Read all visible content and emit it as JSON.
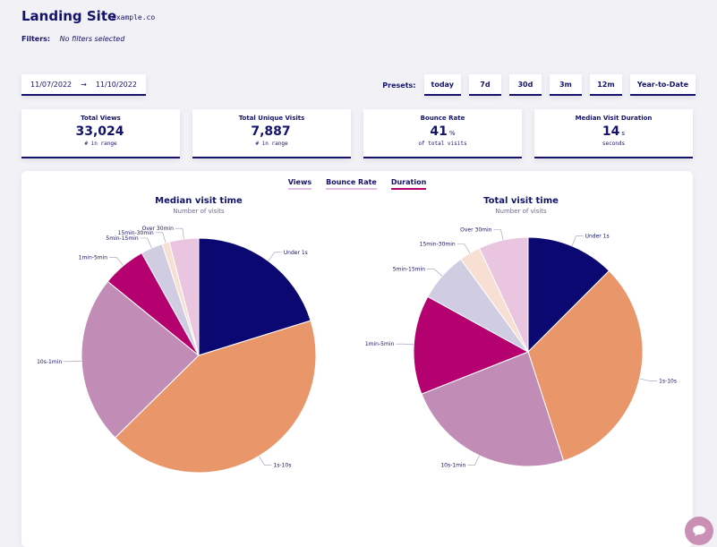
{
  "site": {
    "title": "Landing Site",
    "domain": "example.co"
  },
  "filters": {
    "label": "Filters:",
    "value": "No filters selected"
  },
  "date_range": {
    "start": "11/07/2022",
    "arrow": "→",
    "end": "11/10/2022"
  },
  "presets": {
    "label": "Presets:",
    "items": [
      "today",
      "7d",
      "30d",
      "3m",
      "12m",
      "Year-to-Date"
    ]
  },
  "metrics": [
    {
      "label": "Total Views",
      "value": "33,024",
      "unit": "",
      "sub": "# in range"
    },
    {
      "label": "Total Unique Visits",
      "value": "7,887",
      "unit": "",
      "sub": "# in range"
    },
    {
      "label": "Bounce Rate",
      "value": "41",
      "unit": "%",
      "sub": "of total visits"
    },
    {
      "label": "Median Visit Duration",
      "value": "14",
      "unit": "s",
      "sub": "seconds"
    }
  ],
  "tabs": [
    {
      "label": "Views",
      "active": false
    },
    {
      "label": "Bounce Rate",
      "active": false
    },
    {
      "label": "Duration",
      "active": true
    }
  ],
  "colors": {
    "Under 1s": "#0b0872",
    "1s-10s": "#e8966a",
    "10s-1min": "#c18cb6",
    "1min-5min": "#b5006f",
    "5min-15min": "#d0cde3",
    "15min-30min": "#f7e0d3",
    "Over 30min": "#e9c5df"
  },
  "chart_data": [
    {
      "type": "pie",
      "title": "Median visit time",
      "subtitle": "Number of visits",
      "categories": [
        "Under 1s",
        "1s-10s",
        "10s-1min",
        "1min-5min",
        "5min-15min",
        "15min-30min",
        "Over 30min"
      ],
      "values": [
        20,
        42,
        23,
        6,
        3,
        1,
        4
      ]
    },
    {
      "type": "pie",
      "title": "Total visit time",
      "subtitle": "Number of visits",
      "categories": [
        "Under 1s",
        "1s-10s",
        "10s-1min",
        "1min-5min",
        "5min-15min",
        "15min-30min",
        "Over 30min"
      ],
      "values": [
        12.5,
        32.5,
        24,
        14,
        7,
        3,
        7
      ]
    }
  ]
}
